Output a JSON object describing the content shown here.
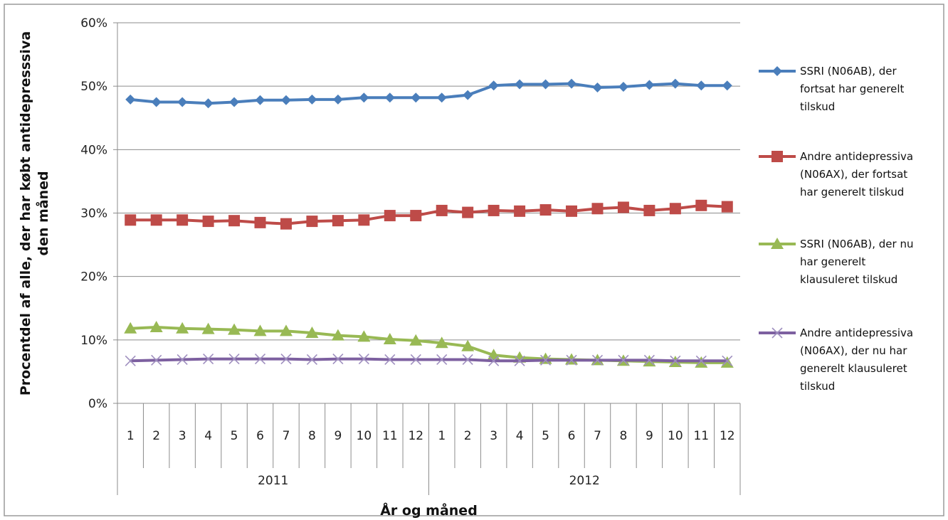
{
  "chart_data": {
    "type": "line",
    "title": "",
    "xlabel": "År og måned",
    "ylabel": "Procentdel af alle, der har købt antidepressiva den måned",
    "ylabel_lines": [
      "Procentdel af alle, der har købt antidepresssiva",
      "den måned"
    ],
    "ylim": [
      0,
      60
    ],
    "yticks": [
      "0%",
      "10%",
      "20%",
      "30%",
      "40%",
      "50%",
      "60%"
    ],
    "categories": [
      "1",
      "2",
      "3",
      "4",
      "5",
      "6",
      "7",
      "8",
      "9",
      "10",
      "11",
      "12",
      "1",
      "2",
      "3",
      "4",
      "5",
      "6",
      "7",
      "8",
      "9",
      "10",
      "11",
      "12"
    ],
    "year_groups": [
      {
        "label": "2011",
        "count": 12
      },
      {
        "label": "2012",
        "count": 12
      }
    ],
    "grid": true,
    "legend_position": "right",
    "series": [
      {
        "name": "SSRI (N06AB), der fortsat har generelt tilskud",
        "legend_lines": [
          "SSRI (N06AB), der",
          "fortsat har generelt",
          "tilskud"
        ],
        "color": "#4a7ebb",
        "marker": "diamond",
        "values": [
          47.9,
          47.5,
          47.5,
          47.3,
          47.5,
          47.8,
          47.8,
          47.9,
          47.9,
          48.2,
          48.2,
          48.2,
          48.2,
          48.6,
          50.1,
          50.3,
          50.3,
          50.4,
          49.8,
          49.9,
          50.2,
          50.4,
          50.1,
          50.1
        ]
      },
      {
        "name": "Andre antidepressiva (N06AX), der fortsat har generelt tilskud",
        "legend_lines": [
          "Andre antidepressiva",
          "(N06AX), der fortsat",
          "har generelt tilskud"
        ],
        "color": "#be4b48",
        "marker": "square",
        "values": [
          28.9,
          28.9,
          28.9,
          28.7,
          28.8,
          28.5,
          28.3,
          28.7,
          28.8,
          28.9,
          29.6,
          29.6,
          30.4,
          30.1,
          30.4,
          30.3,
          30.5,
          30.3,
          30.7,
          30.9,
          30.4,
          30.7,
          31.2,
          31.0
        ]
      },
      {
        "name": "SSRI (N06AB), der nu har generelt klausuleret tilskud",
        "legend_lines": [
          "SSRI (N06AB), der nu",
          "har generelt",
          "klausuleret tilskud"
        ],
        "color": "#98b954",
        "marker": "triangle",
        "values": [
          11.8,
          12.0,
          11.8,
          11.7,
          11.6,
          11.4,
          11.4,
          11.1,
          10.7,
          10.5,
          10.1,
          9.9,
          9.5,
          9.0,
          7.6,
          7.2,
          7.0,
          6.9,
          6.8,
          6.7,
          6.6,
          6.5,
          6.4,
          6.4
        ]
      },
      {
        "name": "Andre antidepressiva (N06AX), der nu har generelt klausuleret tilskud",
        "legend_lines": [
          "Andre antidepressiva",
          "(N06AX), der nu har",
          "generelt klausuleret",
          "tilskud"
        ],
        "color": "#7d60a0",
        "marker": "x",
        "values": [
          6.7,
          6.8,
          6.9,
          7.0,
          7.0,
          7.0,
          7.0,
          6.9,
          7.0,
          7.0,
          6.9,
          6.9,
          6.9,
          6.9,
          6.7,
          6.7,
          6.8,
          6.8,
          6.8,
          6.8,
          6.8,
          6.7,
          6.7,
          6.7
        ]
      }
    ]
  }
}
